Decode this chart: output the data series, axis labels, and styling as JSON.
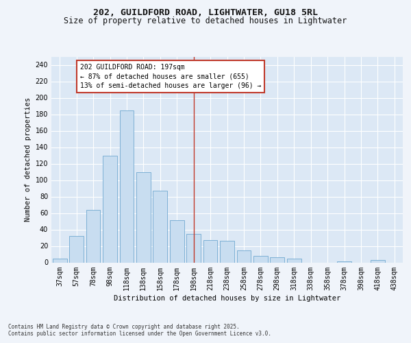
{
  "title_line1": "202, GUILDFORD ROAD, LIGHTWATER, GU18 5RL",
  "title_line2": "Size of property relative to detached houses in Lightwater",
  "xlabel": "Distribution of detached houses by size in Lightwater",
  "ylabel": "Number of detached properties",
  "bar_labels": [
    "37sqm",
    "57sqm",
    "78sqm",
    "98sqm",
    "118sqm",
    "138sqm",
    "158sqm",
    "178sqm",
    "198sqm",
    "218sqm",
    "238sqm",
    "258sqm",
    "278sqm",
    "298sqm",
    "318sqm",
    "338sqm",
    "358sqm",
    "378sqm",
    "398sqm",
    "418sqm",
    "438sqm"
  ],
  "bar_values": [
    5,
    32,
    64,
    130,
    185,
    110,
    87,
    51,
    35,
    27,
    26,
    15,
    8,
    6,
    5,
    0,
    0,
    1,
    0,
    3,
    0
  ],
  "bar_color": "#c8ddf0",
  "bar_edgecolor": "#6fa8d0",
  "bg_color": "#dce8f5",
  "grid_color": "#ffffff",
  "vline_color": "#c0392b",
  "annotation_title": "202 GUILDFORD ROAD: 197sqm",
  "annotation_line1": "← 87% of detached houses are smaller (655)",
  "annotation_line2": "13% of semi-detached houses are larger (96) →",
  "annotation_box_color": "#c0392b",
  "annotation_fill": "#ffffff",
  "ylim": [
    0,
    250
  ],
  "yticks": [
    0,
    20,
    40,
    60,
    80,
    100,
    120,
    140,
    160,
    180,
    200,
    220,
    240
  ],
  "footer_line1": "Contains HM Land Registry data © Crown copyright and database right 2025.",
  "footer_line2": "Contains public sector information licensed under the Open Government Licence v3.0.",
  "title_fontsize": 9.5,
  "subtitle_fontsize": 8.5,
  "axis_label_fontsize": 7.5,
  "tick_fontsize": 7,
  "annotation_fontsize": 7,
  "footer_fontsize": 5.5,
  "fig_bg": "#f0f4fa"
}
